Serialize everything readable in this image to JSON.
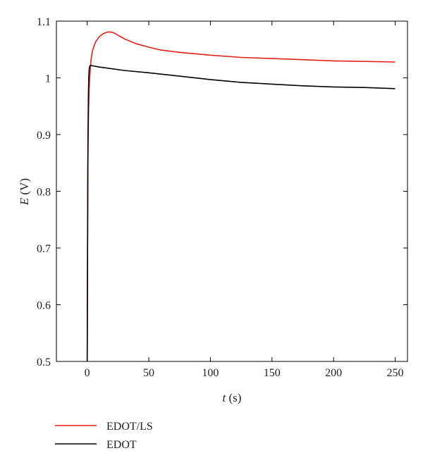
{
  "chart_data": {
    "type": "line",
    "title": "",
    "xlabel": {
      "var": "t",
      "unit": " (s)"
    },
    "ylabel": {
      "var": "E",
      "unit": " (V)"
    },
    "xlim": [
      -25,
      260
    ],
    "ylim": [
      0.5,
      1.1
    ],
    "xticks": [
      0,
      50,
      100,
      150,
      200,
      250
    ],
    "yticks": [
      0.5,
      0.6,
      0.7,
      0.8,
      0.9,
      1,
      1.1
    ],
    "xtick_labels": [
      "0",
      "50",
      "100",
      "150",
      "200",
      "250"
    ],
    "ytick_labels": [
      "0.5",
      "0.6",
      "0.7",
      "0.8",
      "0.9",
      "1",
      "1.1"
    ],
    "grid": false,
    "legend_position": "bottom-left, below plot",
    "series": [
      {
        "name": "EDOT/LS",
        "color": "#e8201a",
        "x": [
          0,
          0.5,
          1,
          1.5,
          2,
          3,
          4,
          5,
          7,
          10,
          13,
          16,
          18,
          20,
          22,
          25,
          30,
          40,
          50,
          60,
          75,
          100,
          125,
          150,
          175,
          200,
          225,
          250
        ],
        "y": [
          0.5,
          0.84,
          0.93,
          0.975,
          1.0,
          1.03,
          1.045,
          1.053,
          1.064,
          1.073,
          1.078,
          1.0805,
          1.081,
          1.0805,
          1.079,
          1.075,
          1.069,
          1.06,
          1.054,
          1.049,
          1.045,
          1.04,
          1.036,
          1.034,
          1.032,
          1.03,
          1.029,
          1.028
        ]
      },
      {
        "name": "EDOT",
        "color": "#000000",
        "x": [
          0,
          0.3,
          0.6,
          1,
          1.3,
          1.6,
          2,
          2.5,
          3,
          5,
          10,
          20,
          30,
          50,
          75,
          100,
          125,
          150,
          175,
          200,
          225,
          250
        ],
        "y": [
          0.5,
          0.7,
          0.88,
          0.97,
          1.005,
          1.015,
          1.02,
          1.022,
          1.022,
          1.021,
          1.019,
          1.016,
          1.013,
          1.009,
          1.003,
          0.997,
          0.992,
          0.989,
          0.986,
          0.984,
          0.983,
          0.981
        ]
      }
    ]
  }
}
